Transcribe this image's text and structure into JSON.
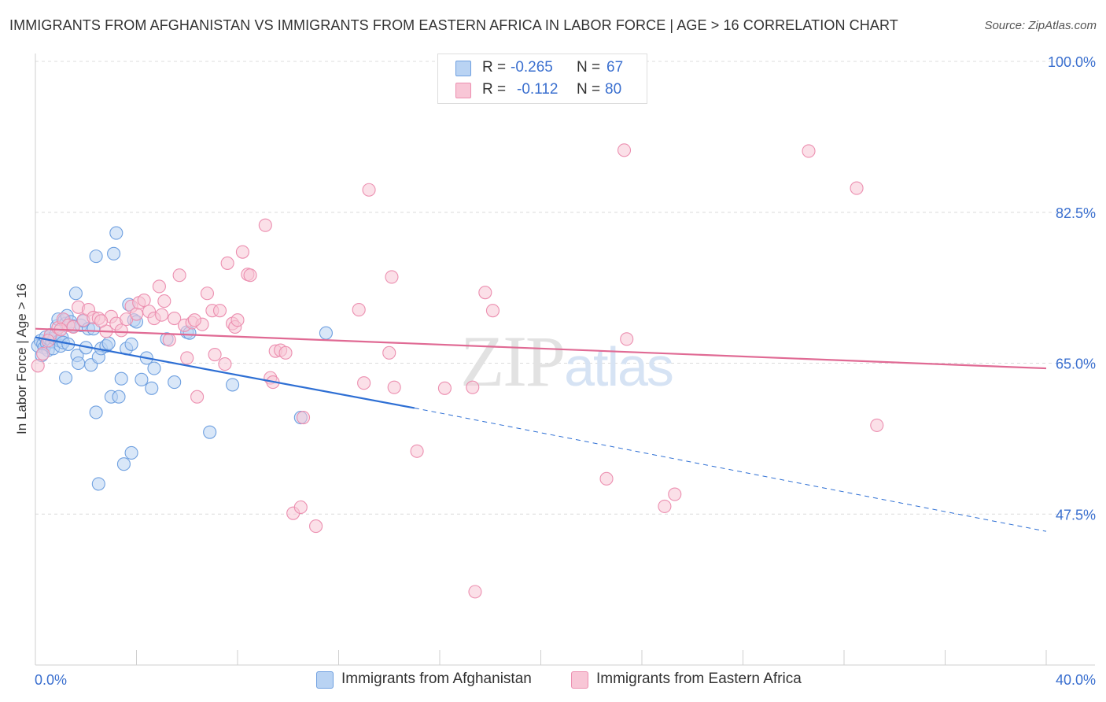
{
  "chart_data": {
    "type": "scatter",
    "title": "IMMIGRANTS FROM AFGHANISTAN VS IMMIGRANTS FROM EASTERN AFRICA IN LABOR FORCE | AGE > 16 CORRELATION CHART",
    "source": "Source: ZipAtlas.com",
    "xlabel": "",
    "ylabel": "In Labor Force | Age > 16",
    "xlim": [
      0,
      40
    ],
    "ylim": [
      30,
      100
    ],
    "x_tick_labels": [
      "0.0%",
      "40.0%"
    ],
    "y_ticks": [
      47.5,
      65.0,
      82.5,
      100.0
    ],
    "y_tick_labels": [
      "47.5%",
      "65.0%",
      "82.5%",
      "100.0%"
    ],
    "grid": true,
    "watermark": "ZIPatlas",
    "legend": [
      {
        "r_label": "R =",
        "r_value": "-0.265",
        "n_label": "N =",
        "n_value": "67"
      },
      {
        "r_label": "R =",
        "r_value": "-0.112",
        "n_label": "N =",
        "n_value": "80"
      }
    ],
    "series": [
      {
        "name": "Immigrants from Afghanistan",
        "color": "#6fa0e0",
        "fill": "#b9d3f3",
        "trend": {
          "x0": 0,
          "y0": 68.0,
          "x1": 15.0,
          "y1": 59.8,
          "dash_to_x": 40,
          "dash_to_y": 45.5,
          "color": "#2e6fd4"
        },
        "points": [
          [
            0.1,
            67.0
          ],
          [
            0.2,
            67.6
          ],
          [
            0.3,
            67.2
          ],
          [
            0.35,
            66.8
          ],
          [
            0.4,
            68.0
          ],
          [
            0.45,
            67.3
          ],
          [
            0.5,
            66.5
          ],
          [
            0.55,
            67.8
          ],
          [
            0.6,
            68.2
          ],
          [
            0.65,
            67.5
          ],
          [
            0.7,
            66.7
          ],
          [
            0.75,
            67.9
          ],
          [
            0.8,
            68.3
          ],
          [
            0.85,
            69.3
          ],
          [
            0.9,
            70.1
          ],
          [
            0.95,
            67.6
          ],
          [
            1.0,
            67.0
          ],
          [
            1.05,
            68.0
          ],
          [
            1.1,
            67.4
          ],
          [
            1.15,
            70.0
          ],
          [
            1.2,
            69.6
          ],
          [
            1.25,
            70.5
          ],
          [
            1.3,
            67.2
          ],
          [
            1.4,
            69.8
          ],
          [
            1.5,
            69.3
          ],
          [
            1.6,
            73.1
          ],
          [
            1.65,
            65.9
          ],
          [
            1.7,
            65.0
          ],
          [
            1.8,
            69.4
          ],
          [
            1.9,
            69.9
          ],
          [
            2.0,
            66.8
          ],
          [
            2.1,
            69.0
          ],
          [
            2.2,
            64.8
          ],
          [
            2.3,
            69.0
          ],
          [
            2.4,
            77.4
          ],
          [
            2.5,
            65.7
          ],
          [
            2.6,
            66.7
          ],
          [
            2.8,
            67.0
          ],
          [
            2.9,
            67.3
          ],
          [
            3.0,
            61.1
          ],
          [
            3.1,
            77.7
          ],
          [
            3.2,
            80.1
          ],
          [
            3.3,
            61.1
          ],
          [
            3.4,
            63.2
          ],
          [
            3.5,
            53.3
          ],
          [
            3.6,
            66.7
          ],
          [
            3.7,
            71.8
          ],
          [
            3.8,
            54.6
          ],
          [
            3.8,
            67.2
          ],
          [
            3.9,
            70.0
          ],
          [
            4.0,
            69.8
          ],
          [
            4.2,
            63.1
          ],
          [
            4.4,
            65.6
          ],
          [
            4.6,
            62.1
          ],
          [
            4.7,
            64.4
          ],
          [
            5.2,
            67.8
          ],
          [
            5.5,
            62.8
          ],
          [
            6.0,
            68.6
          ],
          [
            6.1,
            68.5
          ],
          [
            6.9,
            57.0
          ],
          [
            7.8,
            62.5
          ],
          [
            10.5,
            58.7
          ],
          [
            11.5,
            68.5
          ],
          [
            2.4,
            59.3
          ],
          [
            2.5,
            51.0
          ],
          [
            1.2,
            63.3
          ],
          [
            0.25,
            65.9
          ]
        ]
      },
      {
        "name": "Immigrants from Eastern Africa",
        "color": "#ec8fb0",
        "fill": "#f8c6d6",
        "trend": {
          "x0": 0,
          "y0": 69.0,
          "x1": 40,
          "y1": 64.4,
          "color": "#e06a94"
        },
        "points": [
          [
            0.1,
            64.7
          ],
          [
            0.3,
            66.1
          ],
          [
            0.6,
            68.3
          ],
          [
            0.9,
            69.1
          ],
          [
            1.1,
            70.1
          ],
          [
            1.3,
            69.4
          ],
          [
            1.5,
            69.2
          ],
          [
            1.7,
            71.5
          ],
          [
            1.9,
            70.0
          ],
          [
            2.1,
            71.2
          ],
          [
            2.3,
            70.3
          ],
          [
            2.5,
            70.2
          ],
          [
            2.8,
            68.7
          ],
          [
            3.0,
            70.4
          ],
          [
            3.2,
            69.6
          ],
          [
            3.4,
            68.8
          ],
          [
            3.6,
            70.1
          ],
          [
            3.8,
            71.6
          ],
          [
            4.0,
            70.7
          ],
          [
            4.1,
            72.0
          ],
          [
            4.3,
            72.3
          ],
          [
            4.5,
            71.0
          ],
          [
            4.7,
            70.2
          ],
          [
            4.9,
            73.9
          ],
          [
            5.0,
            70.6
          ],
          [
            5.1,
            72.2
          ],
          [
            5.3,
            67.7
          ],
          [
            5.5,
            70.2
          ],
          [
            5.7,
            75.2
          ],
          [
            5.9,
            69.4
          ],
          [
            6.0,
            65.6
          ],
          [
            6.2,
            69.7
          ],
          [
            6.4,
            61.1
          ],
          [
            6.6,
            69.5
          ],
          [
            6.8,
            73.1
          ],
          [
            7.0,
            71.1
          ],
          [
            7.1,
            66.0
          ],
          [
            7.3,
            71.1
          ],
          [
            7.5,
            64.9
          ],
          [
            7.6,
            76.6
          ],
          [
            7.8,
            69.6
          ],
          [
            7.9,
            69.2
          ],
          [
            8.0,
            70.0
          ],
          [
            8.2,
            77.9
          ],
          [
            8.4,
            75.3
          ],
          [
            8.5,
            75.2
          ],
          [
            9.1,
            81.0
          ],
          [
            9.3,
            63.3
          ],
          [
            9.5,
            66.4
          ],
          [
            9.7,
            66.5
          ],
          [
            9.9,
            66.2
          ],
          [
            10.2,
            47.6
          ],
          [
            10.5,
            48.3
          ],
          [
            10.6,
            58.7
          ],
          [
            11.1,
            46.1
          ],
          [
            12.8,
            71.2
          ],
          [
            13.0,
            62.7
          ],
          [
            13.2,
            85.1
          ],
          [
            14.0,
            66.2
          ],
          [
            14.1,
            75.0
          ],
          [
            14.2,
            62.2
          ],
          [
            15.1,
            54.8
          ],
          [
            16.2,
            62.1
          ],
          [
            17.8,
            73.2
          ],
          [
            18.1,
            71.1
          ],
          [
            17.4,
            38.5
          ],
          [
            17.3,
            62.2
          ],
          [
            22.6,
            51.6
          ],
          [
            23.3,
            89.7
          ],
          [
            23.4,
            67.8
          ],
          [
            24.9,
            48.4
          ],
          [
            25.3,
            49.8
          ],
          [
            30.6,
            89.6
          ],
          [
            32.5,
            85.3
          ],
          [
            33.3,
            57.8
          ],
          [
            0.5,
            67.6
          ],
          [
            1.0,
            68.9
          ],
          [
            2.6,
            69.9
          ],
          [
            6.3,
            70.0
          ],
          [
            9.4,
            62.8
          ]
        ]
      }
    ]
  }
}
